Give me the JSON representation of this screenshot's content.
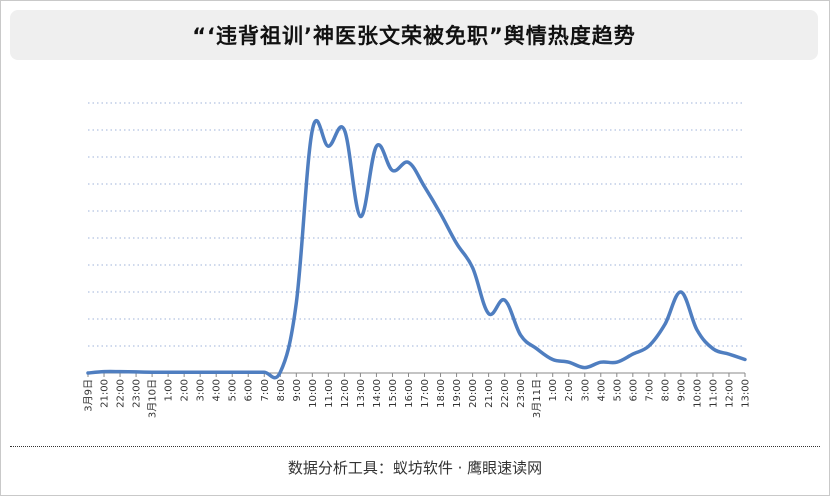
{
  "header": {
    "title": "“‘违背祖训’神医张文荣被免职”舆情热度趋势"
  },
  "footer": {
    "source": "数据分析工具：蚁坊软件 · 鹰眼速读网"
  },
  "colors": {
    "line": "#4f7ec0",
    "grid": "#9fb3d9",
    "axis": "#888888",
    "title_bg": "#efefef"
  },
  "chart_data": {
    "type": "line",
    "title": "“‘违背祖训’神医张文荣被免职”舆情热度趋势",
    "xlabel": "",
    "ylabel": "",
    "grid": true,
    "legend": "none",
    "ylim": [
      0,
      10
    ],
    "categories": [
      "3月9日",
      "21:00",
      "22:00",
      "23:00",
      "3月10日",
      "1:00",
      "2:00",
      "3:00",
      "4:00",
      "5:00",
      "6:00",
      "7:00",
      "8:00",
      "9:00",
      "10:00",
      "11:00",
      "12:00",
      "13:00",
      "14:00",
      "15:00",
      "16:00",
      "17:00",
      "18:00",
      "19:00",
      "20:00",
      "21:00",
      "22:00",
      "23:00",
      "3月11日",
      "1:00",
      "2:00",
      "3:00",
      "4:00",
      "5:00",
      "6:00",
      "7:00",
      "8:00",
      "9:00",
      "10:00",
      "11:00",
      "12:00",
      "13:00"
    ],
    "series": [
      {
        "values": [
          0.0,
          0.05,
          0.05,
          0.04,
          0.03,
          0.03,
          0.03,
          0.03,
          0.03,
          0.03,
          0.03,
          0.03,
          0.03,
          2.6,
          9.0,
          8.4,
          9.0,
          5.8,
          8.4,
          7.5,
          7.8,
          6.9,
          5.9,
          4.8,
          3.9,
          2.2,
          2.7,
          1.4,
          0.9,
          0.5,
          0.4,
          0.2,
          0.4,
          0.4,
          0.7,
          1.0,
          1.8,
          3.0,
          1.6,
          0.9,
          0.7,
          0.5
        ]
      }
    ]
  }
}
